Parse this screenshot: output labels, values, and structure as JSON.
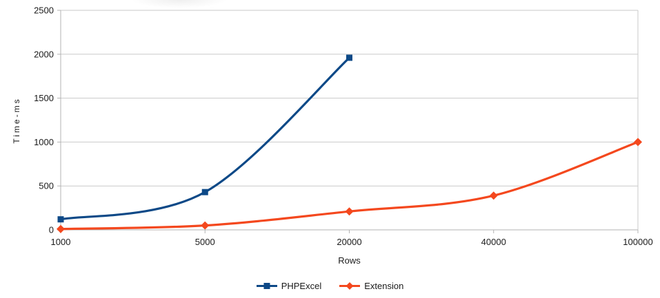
{
  "chart_data": {
    "type": "line",
    "title": "",
    "xlabel": "Rows",
    "ylabel": "Time-ms",
    "categories": [
      "1000",
      "5000",
      "20000",
      "40000",
      "100000"
    ],
    "series": [
      {
        "name": "PHPExcel",
        "color": "#0d4987",
        "marker": "square",
        "values": [
          120,
          430,
          1960,
          null,
          null
        ]
      },
      {
        "name": "Extension",
        "color": "#f4481e",
        "marker": "diamond",
        "values": [
          10,
          50,
          210,
          390,
          1000
        ]
      }
    ],
    "ylim": [
      0,
      2500
    ],
    "yticks": [
      0,
      500,
      1000,
      1500,
      2000,
      2500
    ],
    "grid": "horizontal-only",
    "line_style": "smooth",
    "legend_position": "bottom-center",
    "colors": {
      "gridline": "#c9c9c9",
      "axis": "#b3b3b3",
      "text": "#1a1a1a",
      "background": "#ffffff"
    }
  }
}
